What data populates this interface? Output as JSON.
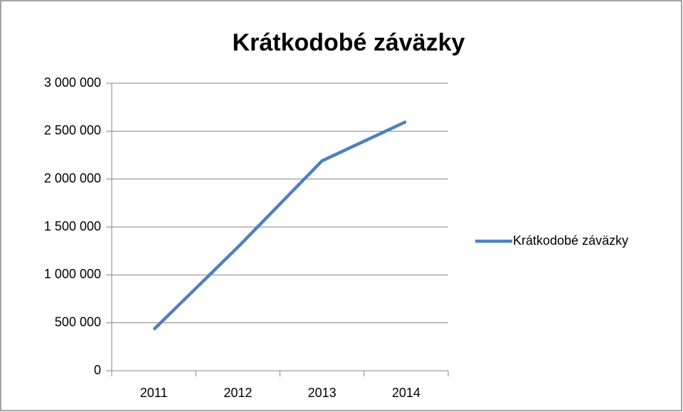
{
  "chart_data": {
    "type": "line",
    "title": "Krátkodobé záväzky",
    "categories": [
      "2011",
      "2012",
      "2013",
      "2014"
    ],
    "series": [
      {
        "name": "Krátkodobé záväzky",
        "color": "#4f81bd",
        "values": [
          430000,
          1290000,
          2190000,
          2600000
        ]
      }
    ],
    "ylim": [
      0,
      3000000
    ],
    "yticks": [
      {
        "value": 0,
        "label": "0"
      },
      {
        "value": 500000,
        "label": "500 000"
      },
      {
        "value": 1000000,
        "label": "1 000 000"
      },
      {
        "value": 1500000,
        "label": "1 500 000"
      },
      {
        "value": 2000000,
        "label": "2 000 000"
      },
      {
        "value": 2500000,
        "label": "2 500 000"
      },
      {
        "value": 3000000,
        "label": "3 000 000"
      }
    ],
    "grid": true,
    "legend": "right"
  }
}
